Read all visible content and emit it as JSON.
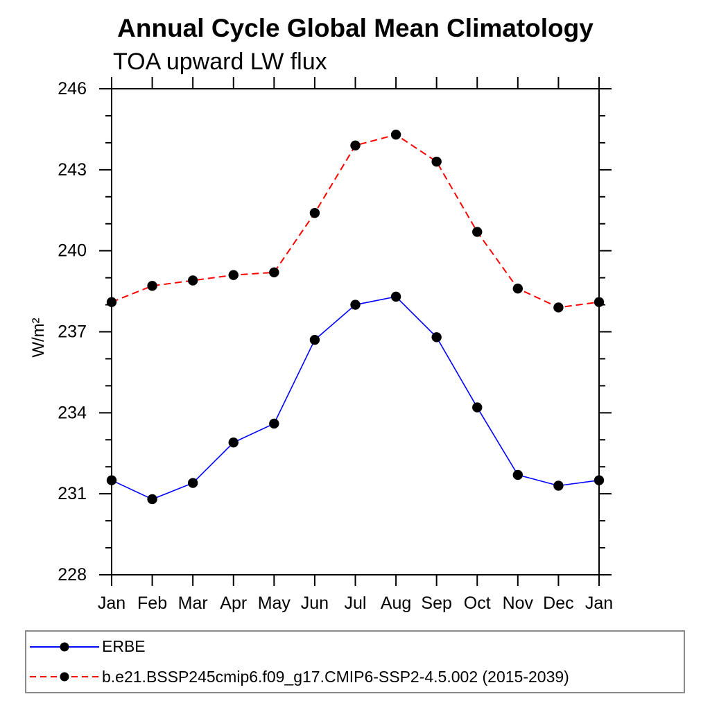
{
  "header": {
    "title": "Annual Cycle Global Mean Climatology",
    "subtitle": "TOA upward LW flux"
  },
  "chart_data": {
    "type": "line",
    "title": "Annual Cycle Global Mean Climatology",
    "subtitle": "TOA upward LW flux",
    "xlabel": "",
    "ylabel": "W/m²",
    "categories": [
      "Jan",
      "Feb",
      "Mar",
      "Apr",
      "May",
      "Jun",
      "Jul",
      "Aug",
      "Sep",
      "Oct",
      "Nov",
      "Dec",
      "Jan"
    ],
    "ylim": [
      228,
      246
    ],
    "ytick_major": [
      228,
      231,
      234,
      237,
      240,
      243,
      246
    ],
    "ytick_minor_step": 1,
    "grid": false,
    "legend_position": "bottom-left-box",
    "axis_color": "#000000",
    "marker_color": "#000000",
    "series": [
      {
        "name": "ERBE",
        "color": "#0000ff",
        "style": "solid",
        "marker": "circle",
        "values": [
          231.5,
          230.8,
          231.4,
          232.9,
          233.6,
          236.7,
          238.0,
          238.3,
          236.8,
          234.2,
          231.7,
          231.3,
          231.5
        ]
      },
      {
        "name": "b.e21.BSSP245cmip6.f09_g17.CMIP6-SSP2-4.5.002 (2015-2039)",
        "color": "#ff0000",
        "style": "dashed",
        "marker": "circle",
        "values": [
          238.1,
          238.7,
          238.9,
          239.1,
          239.2,
          241.4,
          243.9,
          244.3,
          243.3,
          240.7,
          238.6,
          237.9,
          238.1
        ]
      }
    ]
  }
}
